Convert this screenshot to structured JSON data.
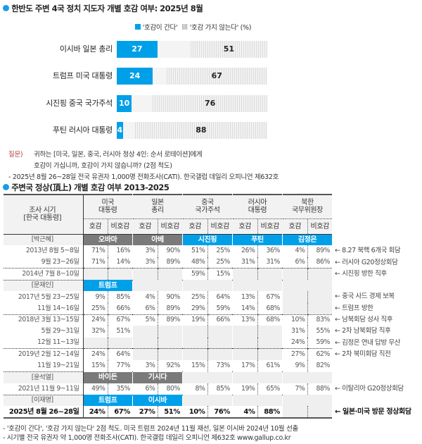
{
  "chart_data": [
    {
      "type": "bar",
      "title": "한반도 주변 4국 정치 지도자 개별 호감 여부: 2025년 8월",
      "legend": [
        "'호감이 간다'",
        "'호감 가지 않는다'"
      ],
      "unit": "(%)",
      "categories": [
        "이시바 일본 총리",
        "트럼프 미국 대통령",
        "시진핑 중국 국가주석",
        "푸틴 러시아 대통령"
      ],
      "series": [
        {
          "name": "'호감이 간다'",
          "values": [
            27,
            24,
            10,
            4
          ]
        },
        {
          "name": "'호감 가지 않는다'",
          "values": [
            51,
            67,
            76,
            88
          ]
        }
      ],
      "xlim": [
        0,
        100
      ]
    },
    {
      "type": "table",
      "title": "주변국 정상(頂上) 개별 호감 여부 2013-2025",
      "row_header": [
        "조사 시기",
        "[한국 대통령]"
      ],
      "groups": [
        [
          "미국",
          "대통령"
        ],
        [
          "일본",
          "총리"
        ],
        [
          "중국",
          "국가주석"
        ],
        [
          "러시아",
          "대통령"
        ],
        [
          "북한",
          "국무위원장"
        ]
      ],
      "sub": [
        "호감",
        "비호감"
      ],
      "rows": [
        {
          "leader": "[박근혜]",
          "leaders": [
            {
              "n": "오바마",
              "c": "#7a7a7a"
            },
            {
              "n": "아베",
              "c": "#7a7a7a"
            },
            {
              "n": "시진핑",
              "c": "#00a0e9"
            },
            {
              "n": "푸틴",
              "c": "#00a0e9"
            },
            {
              "n": "김정은",
              "c": "#00a0e9"
            }
          ]
        },
        {
          "label": "2013년 8월 5~8일",
          "v": [
            "71%",
            "16%",
            "3%",
            "90%",
            "51%",
            "25%",
            "26%",
            "36%",
            "4%",
            "89%"
          ],
          "note": "← 8.27 북핵 6개국 회담"
        },
        {
          "label": "9월 23~26일",
          "v": [
            "71%",
            "14%",
            "3%",
            "89%",
            "48%",
            "25%",
            "31%",
            "31%",
            "6%",
            "86%"
          ],
          "note": "← 러시아 G20정상회담"
        },
        {
          "label": "2014년 7월 8~10일",
          "sep": true,
          "v": [
            null,
            null,
            null,
            null,
            "59%",
            "15%",
            null,
            null,
            null,
            null
          ],
          "note": "← 시진핑 방한 직후"
        },
        {
          "leader": "[문재인]",
          "sep": true,
          "leaders": [
            {
              "n": "트럼프",
              "c": "#00a0e9"
            },
            null,
            null,
            null,
            null
          ]
        },
        {
          "label": "2017년 5월 23~25일",
          "v": [
            "9%",
            "85%",
            "4%",
            "90%",
            "25%",
            "64%",
            "13%",
            "67%",
            null,
            null
          ],
          "note": "← 중국 사드 경제 보복"
        },
        {
          "label": "11월 14~16일",
          "v": [
            "25%",
            "66%",
            "6%",
            "89%",
            "29%",
            "59%",
            "14%",
            "68%",
            null,
            null
          ],
          "note": "← 트럼프 방한"
        },
        {
          "label": "2018년 3월 13~15일",
          "sep": true,
          "v": [
            "24%",
            "67%",
            "5%",
            "89%",
            "19%",
            "66%",
            "13%",
            "68%",
            "10%",
            "83%"
          ],
          "note": "← 남북회담 성사 직후"
        },
        {
          "label": "5월 29~31일",
          "v": [
            "32%",
            "51%",
            null,
            null,
            null,
            null,
            null,
            null,
            "31%",
            "55%"
          ],
          "note": "← 2차 남북회담 직후"
        },
        {
          "label": "12월 11~13일",
          "v": [
            null,
            null,
            null,
            null,
            null,
            null,
            null,
            null,
            "24%",
            "59%"
          ],
          "note": "← 김정은 연내 답방 무산"
        },
        {
          "label": "2019년 2월 12~14일",
          "sep": true,
          "v": [
            "24%",
            "64%",
            null,
            null,
            null,
            null,
            null,
            null,
            "27%",
            "62%"
          ],
          "note": "← 2차 북미회담 직전"
        },
        {
          "label": "11월 19~21일",
          "v": [
            "15%",
            "77%",
            "3%",
            "92%",
            "15%",
            "73%",
            "17%",
            "61%",
            "9%",
            "82%"
          ],
          "note": ""
        },
        {
          "leader": "[윤석열]",
          "sep": true,
          "leaders": [
            {
              "n": "바이든",
              "c": "#7a7a7a"
            },
            {
              "n": "기시다",
              "c": "#7a7a7a"
            },
            null,
            null,
            null
          ]
        },
        {
          "label": "2021년 11월 9~11일",
          "v": [
            "49%",
            "35%",
            "6%",
            "80%",
            "8%",
            "85%",
            "19%",
            "65%",
            "7%",
            "88%"
          ],
          "note": "← 이탈리아 G20정상회담"
        },
        {
          "leader": "[이재명]",
          "sep": true,
          "leaders": [
            {
              "n": "트럼프",
              "c": "#00a0e9"
            },
            {
              "n": "이시바",
              "c": "#00a0e9"
            },
            null,
            null,
            null
          ]
        },
        {
          "label": "2025년 8월 26~28일",
          "bold": true,
          "v": [
            "24%",
            "67%",
            "27%",
            "51%",
            "10%",
            "76%",
            "4%",
            "88%",
            null,
            null
          ],
          "note": "← 일본·미국 방문 정상회담"
        }
      ]
    }
  ],
  "question": {
    "label": "질문)",
    "line1": "귀하는 [미국, 일본, 중국, 러시아 정상 4인: 순서 로테이션]에게",
    "line2": "호감이 가십니까, 호감이 가지 않습니까? (2점 척도)",
    "source": "- 2025년 8월 26~28일 전국 유권자 1,000명 전화조사(CATI). 한국갤럽 데일리 오피니언 제632호"
  },
  "footnotes": [
    "- '호감이 간다', '호감 가지 않는다' 2점 척도. 미국 트럼프 2024년 11월 재선, 일본 이시바 2024년 10월 선출",
    "- 시기별 전국 유권자 약 1,000명 전화조사(CATI). 한국갤럽 데일리 오피니언 제632호 www.gallup.co.kr"
  ],
  "colors": {
    "accent": "#00a0e9",
    "gray": "#7a7a7a"
  }
}
